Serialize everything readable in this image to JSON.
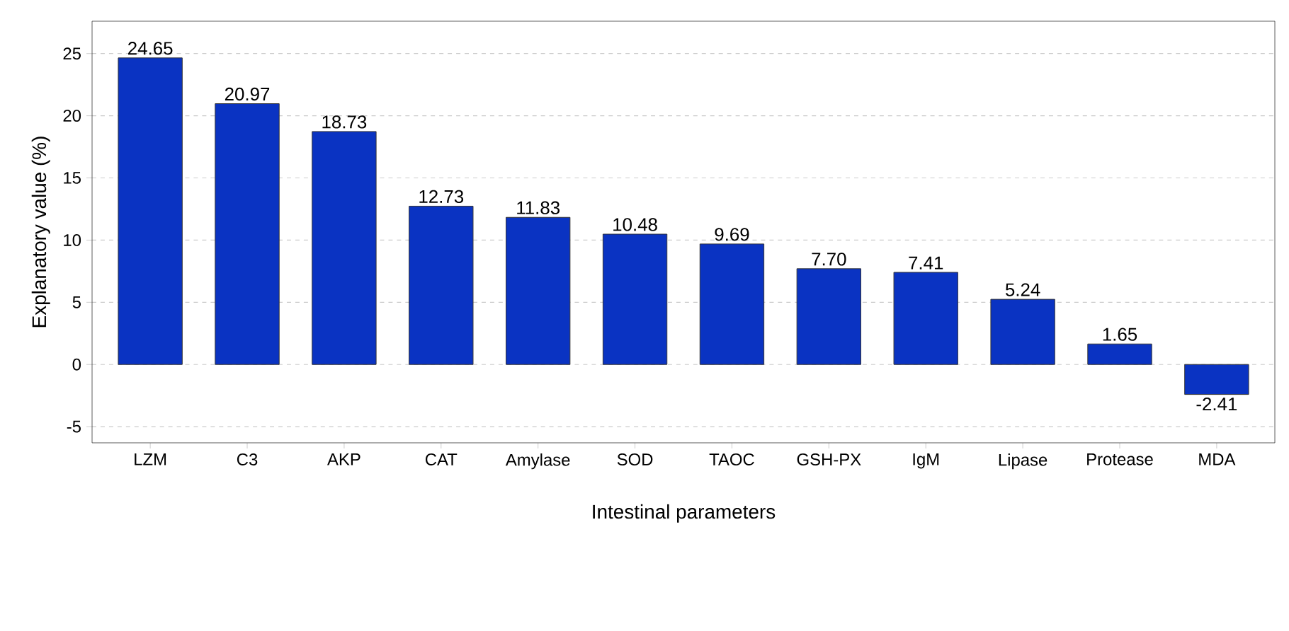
{
  "chart_data": {
    "type": "bar",
    "xlabel": "Intestinal parameters",
    "ylabel": "Explanatory value  (%)",
    "categories": [
      "LZM",
      "C3",
      "AKP",
      "CAT",
      "Amylase",
      "SOD",
      "TAOC",
      "GSH-PX",
      "IgM",
      "Lipase",
      "Protease",
      "MDA"
    ],
    "values": [
      24.65,
      20.97,
      18.73,
      12.73,
      11.83,
      10.48,
      9.69,
      7.7,
      7.41,
      5.24,
      1.65,
      -2.41
    ],
    "value_labels": [
      "24.65",
      "20.97",
      "18.73",
      "12.73",
      "11.83",
      "10.48",
      "9.69",
      "7.70",
      "7.41",
      "5.24",
      "1.65",
      "-2.41"
    ],
    "color": "#0a33c2",
    "ylim": [
      -6.3,
      27.6
    ],
    "yticks": [
      -5,
      0,
      5,
      10,
      15,
      20,
      25
    ],
    "grid": "y"
  }
}
